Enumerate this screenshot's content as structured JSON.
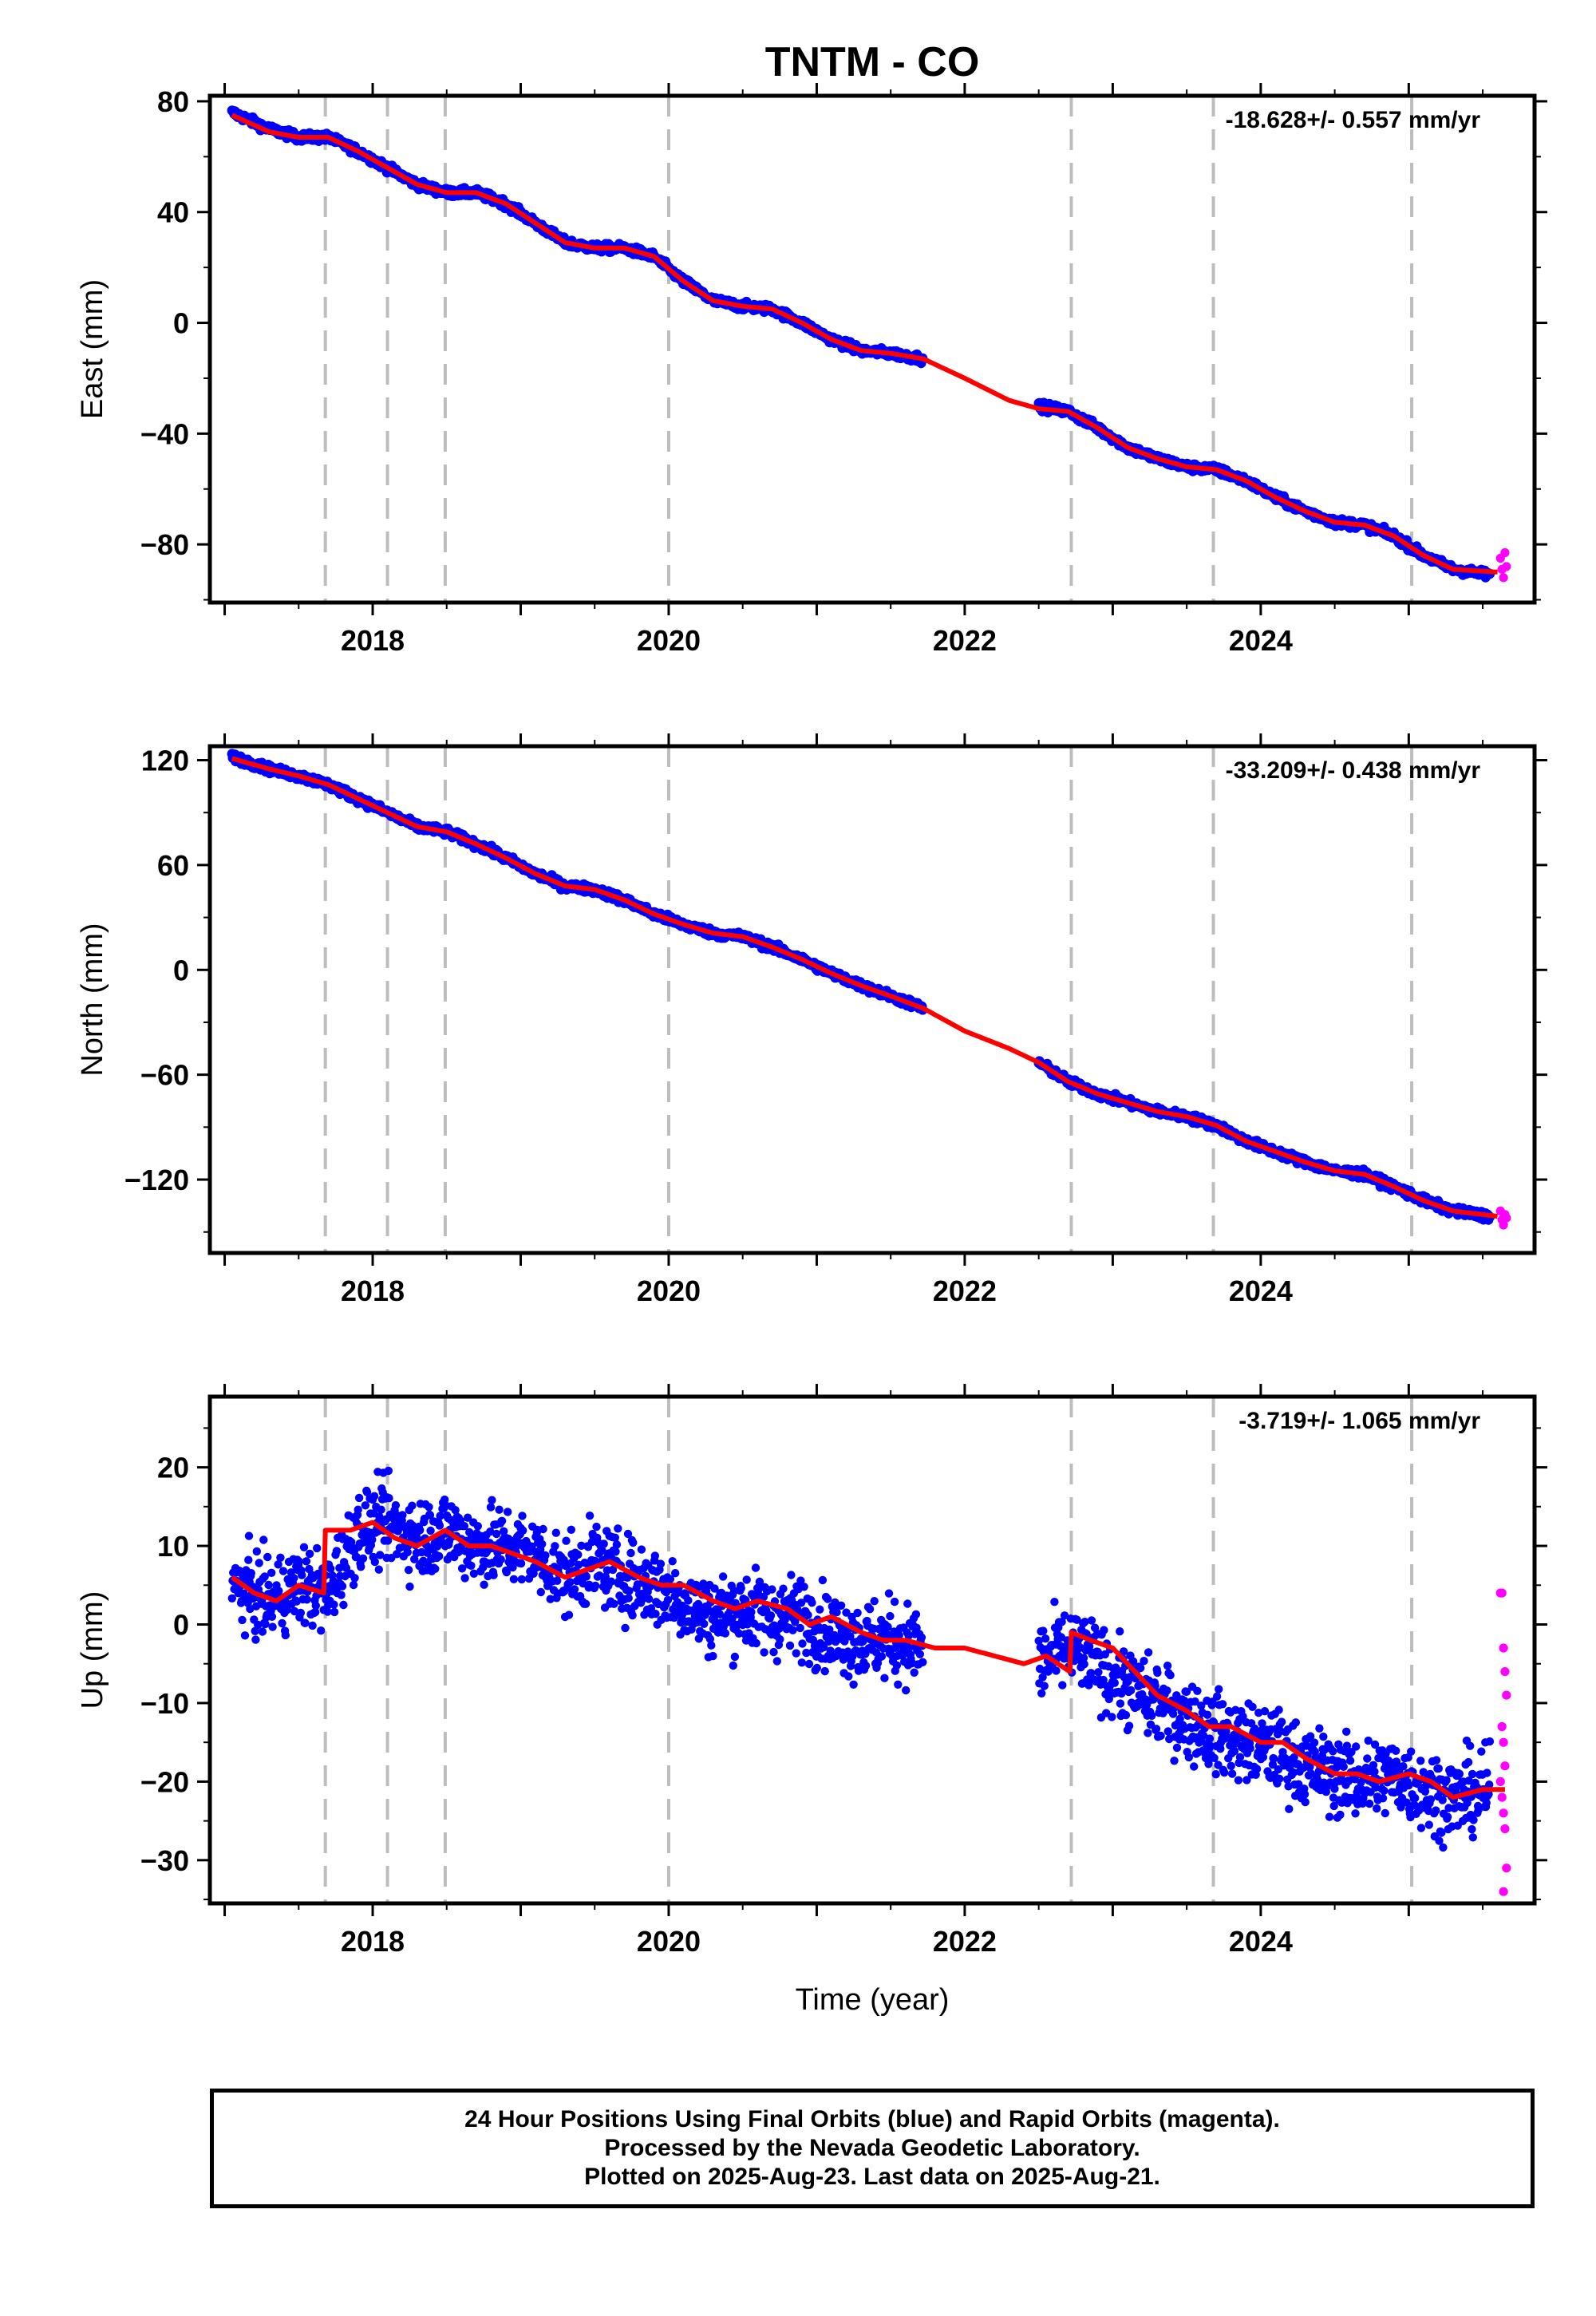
{
  "title": "TNTM - CO",
  "xlabel": "Time (year)",
  "footer": [
    "24 Hour Positions Using Final Orbits (blue) and Rapid Orbits (magenta).",
    "Processed by the Nevada Geodetic Laboratory.",
    "Plotted on 2025-Aug-23. Last data on 2025-Aug-21."
  ],
  "colors": {
    "final": "#0000ff",
    "rapid": "#ff00ff",
    "model": "#ff0000",
    "event": "#bdbdbd"
  },
  "chart_data": [
    {
      "type": "scatter",
      "ylabel": "East (mm)",
      "velocity": "-18.628+/- 0.557 mm/yr",
      "xlim": [
        2016.9,
        2025.85
      ],
      "ylim": [
        -101,
        82
      ],
      "yticks": [
        80,
        40,
        0,
        -40,
        -80
      ],
      "xticks": [
        2018,
        2020,
        2022,
        2024
      ],
      "events": [
        2017.68,
        2018.1,
        2018.49,
        2020.0,
        2022.72,
        2023.68,
        2025.02
      ],
      "grid": false,
      "series": [
        {
          "kind": "final",
          "x": [
            2017.05,
            2017.3,
            2017.5,
            2017.7,
            2017.9,
            2018.1,
            2018.3,
            2018.5,
            2018.7,
            2018.9,
            2019.1,
            2019.3,
            2019.5,
            2019.7,
            2019.9,
            2020.1,
            2020.3,
            2020.5,
            2020.7,
            2020.9,
            2021.1,
            2021.3,
            2021.5,
            2021.72,
            2022.5,
            2022.7,
            2022.9,
            2023.1,
            2023.3,
            2023.5,
            2023.7,
            2023.9,
            2024.1,
            2024.3,
            2024.5,
            2024.7,
            2024.9,
            2025.1,
            2025.3,
            2025.55
          ],
          "y": [
            76,
            70,
            67,
            67,
            62,
            56,
            50,
            47,
            47,
            43,
            36,
            29,
            27,
            27,
            24,
            15,
            8,
            6,
            5,
            0,
            -6,
            -10,
            -11,
            -13,
            -30,
            -32,
            -38,
            -45,
            -49,
            -52,
            -53,
            -57,
            -63,
            -68,
            -72,
            -73,
            -77,
            -84,
            -89,
            -91
          ]
        },
        {
          "kind": "rapid",
          "x": [
            2025.62,
            2025.63,
            2025.64,
            2025.65,
            2025.66
          ],
          "y": [
            -85,
            -89,
            -92,
            -83,
            -88
          ]
        },
        {
          "kind": "model",
          "x": [
            2017.05,
            2017.3,
            2017.5,
            2017.7,
            2017.9,
            2018.1,
            2018.3,
            2018.5,
            2018.7,
            2018.9,
            2019.1,
            2019.3,
            2019.5,
            2019.7,
            2019.9,
            2020.1,
            2020.3,
            2020.5,
            2020.7,
            2020.9,
            2021.1,
            2021.3,
            2021.5,
            2021.72,
            2022.0,
            2022.3,
            2022.5,
            2022.7,
            2022.9,
            2023.1,
            2023.3,
            2023.5,
            2023.7,
            2023.9,
            2024.1,
            2024.3,
            2024.5,
            2024.7,
            2024.9,
            2025.1,
            2025.3,
            2025.6
          ],
          "y": [
            75,
            69,
            67,
            67,
            62,
            56,
            50,
            47,
            47,
            43,
            36,
            29,
            27,
            27,
            24,
            15,
            8,
            6,
            5,
            0,
            -6,
            -10,
            -11,
            -13,
            -20,
            -28,
            -31,
            -32,
            -38,
            -45,
            -49,
            -52,
            -53,
            -57,
            -63,
            -68,
            -72,
            -73,
            -77,
            -84,
            -89,
            -90
          ]
        }
      ]
    },
    {
      "type": "scatter",
      "ylabel": "North (mm)",
      "velocity": "-33.209+/- 0.438 mm/yr",
      "xlim": [
        2016.9,
        2025.85
      ],
      "ylim": [
        -162,
        128
      ],
      "yticks": [
        120,
        60,
        0,
        -60,
        -120
      ],
      "xticks": [
        2018,
        2020,
        2022,
        2024
      ],
      "events": [
        2017.68,
        2018.1,
        2018.49,
        2020.0,
        2022.72,
        2023.68,
        2025.02
      ],
      "grid": false,
      "series": [
        {
          "kind": "final",
          "x": [
            2017.05,
            2017.3,
            2017.5,
            2017.7,
            2017.9,
            2018.1,
            2018.3,
            2018.5,
            2018.7,
            2018.9,
            2019.1,
            2019.3,
            2019.5,
            2019.7,
            2019.9,
            2020.1,
            2020.3,
            2020.5,
            2020.7,
            2020.9,
            2021.1,
            2021.3,
            2021.5,
            2021.72,
            2022.5,
            2022.7,
            2022.9,
            2023.1,
            2023.3,
            2023.5,
            2023.7,
            2023.9,
            2024.1,
            2024.3,
            2024.5,
            2024.7,
            2024.9,
            2025.1,
            2025.3,
            2025.55
          ],
          "y": [
            122,
            115,
            111,
            106,
            98,
            90,
            82,
            79,
            72,
            64,
            55,
            48,
            46,
            40,
            32,
            26,
            21,
            19,
            13,
            6,
            -2,
            -9,
            -15,
            -22,
            -53,
            -64,
            -71,
            -76,
            -81,
            -84,
            -89,
            -98,
            -104,
            -110,
            -115,
            -117,
            -124,
            -132,
            -138,
            -141
          ]
        },
        {
          "kind": "rapid",
          "x": [
            2025.62,
            2025.63,
            2025.64,
            2025.65,
            2025.66
          ],
          "y": [
            -138,
            -143,
            -146,
            -140,
            -142
          ]
        },
        {
          "kind": "model",
          "x": [
            2017.05,
            2017.3,
            2017.5,
            2017.7,
            2017.9,
            2018.1,
            2018.3,
            2018.5,
            2018.7,
            2018.9,
            2019.1,
            2019.3,
            2019.5,
            2019.7,
            2019.9,
            2020.1,
            2020.3,
            2020.5,
            2020.7,
            2020.9,
            2021.1,
            2021.3,
            2021.5,
            2021.72,
            2022.0,
            2022.3,
            2022.5,
            2022.7,
            2022.9,
            2023.1,
            2023.3,
            2023.5,
            2023.7,
            2023.9,
            2024.1,
            2024.3,
            2024.5,
            2024.7,
            2024.9,
            2025.1,
            2025.3,
            2025.6
          ],
          "y": [
            121,
            115,
            111,
            106,
            98,
            90,
            82,
            79,
            72,
            64,
            55,
            48,
            46,
            40,
            32,
            26,
            21,
            19,
            13,
            6,
            -2,
            -9,
            -15,
            -22,
            -35,
            -45,
            -53,
            -64,
            -71,
            -76,
            -81,
            -84,
            -89,
            -98,
            -104,
            -110,
            -115,
            -117,
            -124,
            -132,
            -138,
            -141
          ]
        }
      ]
    },
    {
      "type": "scatter",
      "ylabel": "Up (mm)",
      "velocity": "-3.719+/- 1.065 mm/yr",
      "xlim": [
        2016.9,
        2025.85
      ],
      "ylim": [
        -35.5,
        29
      ],
      "yticks": [
        20,
        10,
        0,
        -10,
        -20,
        -30
      ],
      "xticks": [
        2018,
        2020,
        2022,
        2024
      ],
      "events": [
        2017.68,
        2018.1,
        2018.49,
        2020.0,
        2022.72,
        2023.68,
        2025.02
      ],
      "grid": false,
      "series": [
        {
          "kind": "final",
          "x": [
            2017.05,
            2017.3,
            2017.5,
            2017.7,
            2017.9,
            2018.1,
            2018.3,
            2018.5,
            2018.7,
            2018.9,
            2019.1,
            2019.3,
            2019.5,
            2019.7,
            2019.9,
            2020.1,
            2020.3,
            2020.5,
            2020.7,
            2020.9,
            2021.1,
            2021.3,
            2021.5,
            2021.72,
            2022.5,
            2022.7,
            2022.9,
            2023.1,
            2023.3,
            2023.5,
            2023.7,
            2023.9,
            2024.1,
            2024.3,
            2024.5,
            2024.7,
            2024.9,
            2025.1,
            2025.3,
            2025.55
          ],
          "y": [
            5,
            3,
            5,
            4,
            12,
            13,
            11,
            12,
            10,
            10,
            9,
            6,
            8,
            6,
            5,
            3,
            1,
            2,
            1,
            1,
            -1,
            -2,
            -2,
            -3,
            -5,
            -3,
            -5,
            -8,
            -10,
            -12,
            -14,
            -15,
            -16,
            -18,
            -19,
            -20,
            -19,
            -21,
            -22,
            -21
          ]
        },
        {
          "kind": "rapid",
          "x": [
            2025.62,
            2025.63,
            2025.64,
            2025.65,
            2025.66,
            2025.63,
            2025.64,
            2025.65,
            2025.62,
            2025.63,
            2025.64,
            2025.65,
            2025.66,
            2025.64
          ],
          "y": [
            4,
            4,
            -3,
            -6,
            -9,
            -13,
            -15,
            -18,
            -20,
            -22,
            -24,
            -26,
            -31,
            -34
          ]
        },
        {
          "kind": "model",
          "x": [
            2017.05,
            2017.2,
            2017.35,
            2017.5,
            2017.67,
            2017.68,
            2017.85,
            2018.0,
            2018.15,
            2018.3,
            2018.49,
            2018.65,
            2018.8,
            2018.95,
            2019.1,
            2019.3,
            2019.45,
            2019.6,
            2019.8,
            2019.95,
            2020.1,
            2020.3,
            2020.45,
            2020.6,
            2020.8,
            2020.95,
            2021.1,
            2021.3,
            2021.45,
            2021.6,
            2021.8,
            2022.0,
            2022.2,
            2022.4,
            2022.55,
            2022.71,
            2022.72,
            2022.85,
            2023.0,
            2023.15,
            2023.3,
            2023.5,
            2023.65,
            2023.8,
            2024.0,
            2024.15,
            2024.3,
            2024.5,
            2024.65,
            2024.8,
            2025.0,
            2025.15,
            2025.3,
            2025.5,
            2025.65
          ],
          "y": [
            6,
            4,
            3,
            5,
            4,
            12,
            12,
            13,
            11,
            10,
            12,
            10,
            10,
            9,
            8,
            6,
            7,
            8,
            6,
            5,
            5,
            3,
            2,
            3,
            2,
            0,
            1,
            -1,
            -2,
            -2,
            -3,
            -3,
            -4,
            -5,
            -4,
            -6,
            -1,
            -2,
            -3,
            -6,
            -9,
            -11,
            -13,
            -13,
            -15,
            -15,
            -17,
            -19,
            -19,
            -20,
            -19,
            -20,
            -22,
            -21,
            -21
          ]
        }
      ]
    }
  ]
}
